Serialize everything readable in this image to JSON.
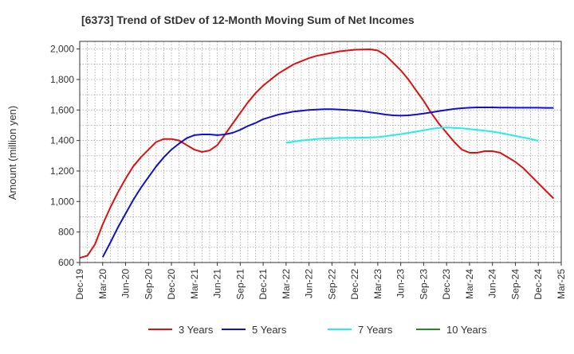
{
  "chart_data": {
    "type": "line",
    "title": "[6373]  Trend of StDev of 12-Month Moving Sum of Net Incomes",
    "ylabel": "Amount (million yen)",
    "xlabel": "",
    "ylim": [
      600,
      2050
    ],
    "yticks": [
      600,
      800,
      1000,
      1200,
      1400,
      1600,
      1800,
      2000
    ],
    "ytick_labels": [
      "600",
      "800",
      "1,000",
      "1,200",
      "1,400",
      "1,600",
      "1,800",
      "2,000"
    ],
    "xticks": [
      "Dec-19",
      "Mar-20",
      "Jun-20",
      "Sep-20",
      "Dec-20",
      "Mar-21",
      "Jun-21",
      "Sep-21",
      "Dec-21",
      "Mar-22",
      "Jun-22",
      "Sep-22",
      "Dec-22",
      "Mar-23",
      "Jun-23",
      "Sep-23",
      "Dec-23",
      "Mar-24",
      "Jun-24",
      "Sep-24",
      "Dec-24",
      "Mar-25"
    ],
    "grid": true,
    "legend_position": "bottom",
    "series": [
      {
        "name": "3 Years",
        "color": "#dd1111",
        "start_index": 0,
        "values": [
          630,
          645,
          720,
          850,
          960,
          1060,
          1150,
          1230,
          1290,
          1340,
          1390,
          1410,
          1410,
          1400,
          1370,
          1340,
          1325,
          1335,
          1370,
          1440,
          1510,
          1580,
          1650,
          1710,
          1760,
          1800,
          1840,
          1870,
          1900,
          1920,
          1940,
          1955,
          1965,
          1975,
          1985,
          1990,
          1995,
          1997,
          1998,
          1990,
          1960,
          1910,
          1860,
          1800,
          1730,
          1660,
          1580,
          1510,
          1450,
          1390,
          1340,
          1320,
          1320,
          1330,
          1330,
          1320,
          1290,
          1260,
          1220,
          1170,
          1120,
          1070,
          1020
        ]
      },
      {
        "name": "5 Years",
        "color": "#1111cc",
        "start_index": 3,
        "values": [
          635,
          730,
          830,
          920,
          1010,
          1090,
          1160,
          1230,
          1290,
          1340,
          1380,
          1415,
          1435,
          1440,
          1440,
          1435,
          1440,
          1450,
          1470,
          1495,
          1515,
          1540,
          1555,
          1570,
          1580,
          1590,
          1595,
          1600,
          1603,
          1605,
          1605,
          1603,
          1600,
          1597,
          1592,
          1585,
          1578,
          1570,
          1565,
          1563,
          1565,
          1570,
          1577,
          1585,
          1593,
          1600,
          1607,
          1612,
          1615,
          1617,
          1617,
          1617,
          1616,
          1616,
          1615,
          1615,
          1615,
          1615,
          1614,
          1614
        ]
      },
      {
        "name": "7 Years",
        "color": "#22eeee",
        "start_index": 27,
        "values": [
          1385,
          1393,
          1400,
          1405,
          1410,
          1413,
          1415,
          1417,
          1418,
          1418,
          1419,
          1420,
          1422,
          1428,
          1435,
          1442,
          1450,
          1458,
          1467,
          1476,
          1483,
          1485,
          1483,
          1480,
          1475,
          1470,
          1465,
          1458,
          1450,
          1440,
          1430,
          1420,
          1410,
          1398
        ]
      },
      {
        "name": "10 Years",
        "color": "#228b22",
        "start_index": 0,
        "values": []
      }
    ]
  }
}
